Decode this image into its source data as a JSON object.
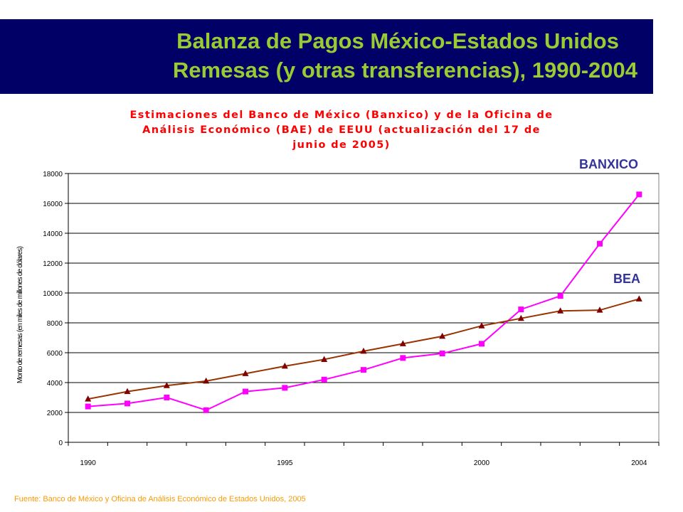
{
  "header": {
    "title_line1": "Balanza de Pagos México-Estados Unidos",
    "title_line2": "Remesas (y otras transferencias), 1990-2004"
  },
  "subtitle_lines": [
    "Estimaciones del Banco de México (Banxico) y de la Oficina de",
    "Análisis Económico (BAE) de EEUU (actualización del 17 de",
    "junio de 2005)"
  ],
  "source": "Fuente: Banco de México y Oficina de Análisis Económico de Estados Unidos, 2005",
  "chart_data": {
    "type": "line",
    "x": [
      1990,
      1991,
      1992,
      1993,
      1994,
      1995,
      1996,
      1997,
      1998,
      1999,
      2000,
      2001,
      2002,
      2003,
      2004
    ],
    "x_tick_labels": [
      "1990",
      "1995",
      "2000",
      "2004"
    ],
    "x_tick_label_years": [
      1990,
      1995,
      2000,
      2004
    ],
    "ylabel": "Monto de remesas (en miles de millones de dólares)",
    "ylim": [
      0,
      18000
    ],
    "y_ticks": [
      0,
      2000,
      4000,
      6000,
      8000,
      10000,
      12000,
      14000,
      16000,
      18000
    ],
    "grid": true,
    "series": [
      {
        "name": "BANXICO",
        "color": "#ff00ff",
        "marker": "square",
        "values": [
          2400,
          2600,
          3000,
          2150,
          3400,
          3650,
          4200,
          4850,
          5650,
          5950,
          6600,
          8900,
          9800,
          13300,
          16600
        ]
      },
      {
        "name": "BEA",
        "color": "#993300",
        "marker_color": "#800000",
        "marker": "triangle",
        "values": [
          2900,
          3400,
          3800,
          4100,
          4600,
          5100,
          5550,
          6100,
          6600,
          7100,
          7800,
          8300,
          8800,
          8850,
          9600
        ]
      }
    ]
  }
}
